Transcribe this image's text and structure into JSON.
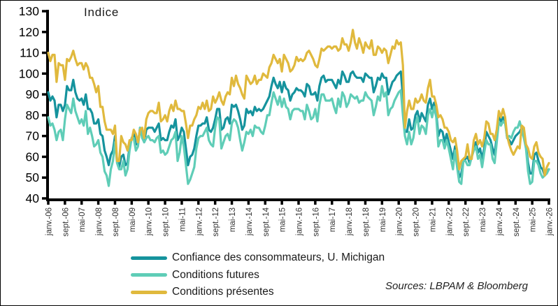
{
  "title": "Indice",
  "source_note": "Sources: LBPAM & Bloomberg",
  "axis_color": "#000000",
  "x_label_color": "#333333",
  "chart_data": {
    "type": "line",
    "title": "Indice",
    "ylabel": "",
    "xlabel": "",
    "ylim": [
      40,
      130
    ],
    "y_tick_step": 10,
    "grid": false,
    "legend_position": "bottom",
    "x_unit": "month",
    "x_range": [
      "janv.-06",
      "janv.-26"
    ],
    "x_tick_every_months": 8,
    "x_tick_labels": [
      "janv.-06",
      "sept.-06",
      "mai-07",
      "janv.-08",
      "sept.-08",
      "mai-09",
      "janv.-10",
      "sept.-10",
      "mai-11",
      "janv.-12",
      "sept.-12",
      "mai-13",
      "janv.-14",
      "sept.-14",
      "mai-15",
      "janv.-16",
      "sept.-16",
      "mai-17",
      "janv.-18",
      "sept.-18",
      "mai-19",
      "janv.-20",
      "sept.-20",
      "mai-21",
      "janv.-22",
      "sept.-22",
      "mai-23",
      "janv.-24",
      "sept.-24",
      "mai-25",
      "janv.-26"
    ],
    "series": [
      {
        "name": "Confiance des consommateurs, U. Michigan",
        "color": "#15939D",
        "values": [
          91,
          87,
          89,
          87,
          79,
          85,
          85,
          82,
          85,
          94,
          92,
          92,
          97,
          91,
          88,
          87,
          88,
          85,
          90,
          83,
          83,
          81,
          76,
          76,
          78,
          71,
          70,
          63,
          60,
          56,
          61,
          63,
          70,
          58,
          55,
          60,
          61,
          56,
          57,
          65,
          69,
          71,
          66,
          66,
          74,
          71,
          67,
          73,
          74,
          74,
          74,
          72,
          74,
          76,
          68,
          69,
          68,
          68,
          72,
          75,
          74,
          78,
          68,
          70,
          74,
          72,
          64,
          56,
          60,
          61,
          64,
          70,
          75,
          75,
          76,
          76,
          79,
          73,
          72,
          74,
          78,
          83,
          83,
          73,
          74,
          78,
          79,
          76,
          85,
          84,
          85,
          82,
          78,
          73,
          75,
          83,
          81,
          82,
          80,
          84,
          82,
          83,
          82,
          83,
          85,
          87,
          89,
          94,
          98,
          95,
          93,
          96,
          91,
          96,
          93,
          92,
          87,
          90,
          91,
          93,
          92,
          92,
          91,
          89,
          95,
          94,
          90,
          90,
          91,
          87,
          94,
          98,
          99,
          96,
          97,
          97,
          97,
          95,
          93,
          97,
          95,
          101,
          99,
          96,
          96,
          100,
          101,
          99,
          98,
          98,
          98,
          96,
          100,
          99,
          98,
          98,
          91,
          94,
          98,
          97,
          100,
          98,
          98,
          90,
          93,
          96,
          97,
          99,
          100,
          101,
          89,
          72,
          72,
          78,
          73,
          74,
          80,
          82,
          77,
          81,
          79,
          77,
          85,
          88,
          83,
          86,
          81,
          70,
          73,
          72,
          67,
          71,
          67,
          63,
          59,
          65,
          58,
          50,
          52,
          58,
          59,
          60,
          57,
          60,
          65,
          67,
          62,
          64,
          59,
          64,
          72,
          70,
          68,
          64,
          61,
          70,
          79,
          77,
          79,
          77,
          69,
          68,
          66,
          68,
          70,
          71,
          72,
          74,
          71,
          65,
          57,
          52,
          52,
          61,
          62,
          58,
          55,
          54,
          51,
          53,
          54
        ]
      },
      {
        "name": "Conditions futures",
        "color": "#5FCDB7",
        "values": [
          79,
          75,
          76,
          73,
          68,
          72,
          73,
          68,
          78,
          85,
          83,
          81,
          88,
          82,
          79,
          76,
          78,
          75,
          82,
          71,
          74,
          70,
          65,
          66,
          68,
          62,
          60,
          53,
          51,
          46,
          54,
          58,
          67,
          57,
          54,
          54,
          58,
          51,
          54,
          63,
          69,
          69,
          63,
          65,
          74,
          69,
          67,
          69,
          70,
          68,
          68,
          67,
          69,
          70,
          62,
          63,
          61,
          62,
          65,
          68,
          69,
          72,
          58,
          62,
          70,
          65,
          56,
          47,
          49,
          52,
          55,
          64,
          69,
          70,
          70,
          72,
          74,
          68,
          66,
          65,
          74,
          79,
          78,
          64,
          67,
          70,
          71,
          68,
          76,
          78,
          77,
          74,
          68,
          63,
          67,
          72,
          71,
          73,
          70,
          75,
          74,
          74,
          72,
          71,
          75,
          80,
          80,
          86,
          91,
          88,
          85,
          89,
          84,
          88,
          84,
          83,
          78,
          82,
          83,
          83,
          83,
          82,
          82,
          78,
          85,
          82,
          78,
          79,
          83,
          77,
          85,
          90,
          90,
          87,
          87,
          87,
          88,
          84,
          81,
          88,
          84,
          91,
          89,
          84,
          86,
          90,
          89,
          88,
          89,
          86,
          87,
          87,
          91,
          89,
          88,
          87,
          80,
          84,
          89,
          87,
          94,
          89,
          91,
          80,
          83,
          84,
          87,
          89,
          91,
          92,
          80,
          70,
          66,
          72,
          66,
          69,
          76,
          79,
          71,
          75,
          74,
          71,
          80,
          83,
          79,
          84,
          79,
          65,
          68,
          68,
          64,
          68,
          64,
          59,
          54,
          63,
          55,
          48,
          47,
          58,
          58,
          56,
          56,
          60,
          63,
          65,
          59,
          61,
          55,
          62,
          68,
          66,
          66,
          59,
          57,
          67,
          77,
          75,
          77,
          76,
          69,
          70,
          69,
          72,
          74,
          74,
          77,
          73,
          69,
          64,
          53,
          47,
          48,
          58,
          58,
          56,
          52,
          50,
          51,
          52,
          54
        ]
      },
      {
        "name": "Conditions présentes",
        "color": "#E0B93D",
        "values": [
          110,
          106,
          109,
          109,
          96,
          105,
          104,
          104,
          97,
          107,
          106,
          108,
          111,
          107,
          104,
          105,
          105,
          102,
          105,
          103,
          98,
          98,
          95,
          91,
          94,
          84,
          84,
          77,
          73,
          73,
          73,
          71,
          75,
          58,
          58,
          70,
          67,
          66,
          63,
          68,
          68,
          73,
          71,
          67,
          73,
          74,
          69,
          78,
          81,
          82,
          82,
          81,
          81,
          86,
          77,
          78,
          80,
          77,
          82,
          85,
          82,
          87,
          83,
          83,
          82,
          82,
          76,
          69,
          75,
          75,
          78,
          80,
          84,
          83,
          86,
          83,
          87,
          82,
          83,
          89,
          86,
          88,
          91,
          87,
          85,
          89,
          91,
          90,
          98,
          94,
          99,
          95,
          93,
          90,
          88,
          99,
          97,
          95,
          96,
          99,
          95,
          97,
          97,
          100,
          99,
          98,
          103,
          105,
          109,
          107,
          105,
          107,
          101,
          109,
          107,
          105,
          101,
          102,
          104,
          108,
          106,
          107,
          106,
          107,
          110,
          111,
          109,
          107,
          104,
          103,
          107,
          112,
          111,
          112,
          113,
          113,
          112,
          113,
          113,
          111,
          112,
          117,
          114,
          114,
          111,
          115,
          121,
          115,
          112,
          117,
          114,
          110,
          115,
          113,
          112,
          116,
          109,
          109,
          113,
          112,
          110,
          112,
          111,
          105,
          109,
          113,
          112,
          116,
          114,
          115,
          104,
          74,
          82,
          87,
          83,
          83,
          88,
          86,
          87,
          90,
          87,
          86,
          93,
          97,
          89,
          89,
          85,
          79,
          80,
          78,
          74,
          74,
          72,
          68,
          67,
          69,
          63,
          54,
          58,
          59,
          60,
          66,
          59,
          59,
          68,
          71,
          66,
          68,
          65,
          69,
          77,
          76,
          71,
          71,
          68,
          73,
          82,
          79,
          83,
          79,
          70,
          66,
          63,
          61,
          63,
          65,
          64,
          75,
          74,
          66,
          64,
          60,
          59,
          65,
          67,
          62,
          60,
          59,
          51,
          55,
          57
        ]
      }
    ]
  }
}
